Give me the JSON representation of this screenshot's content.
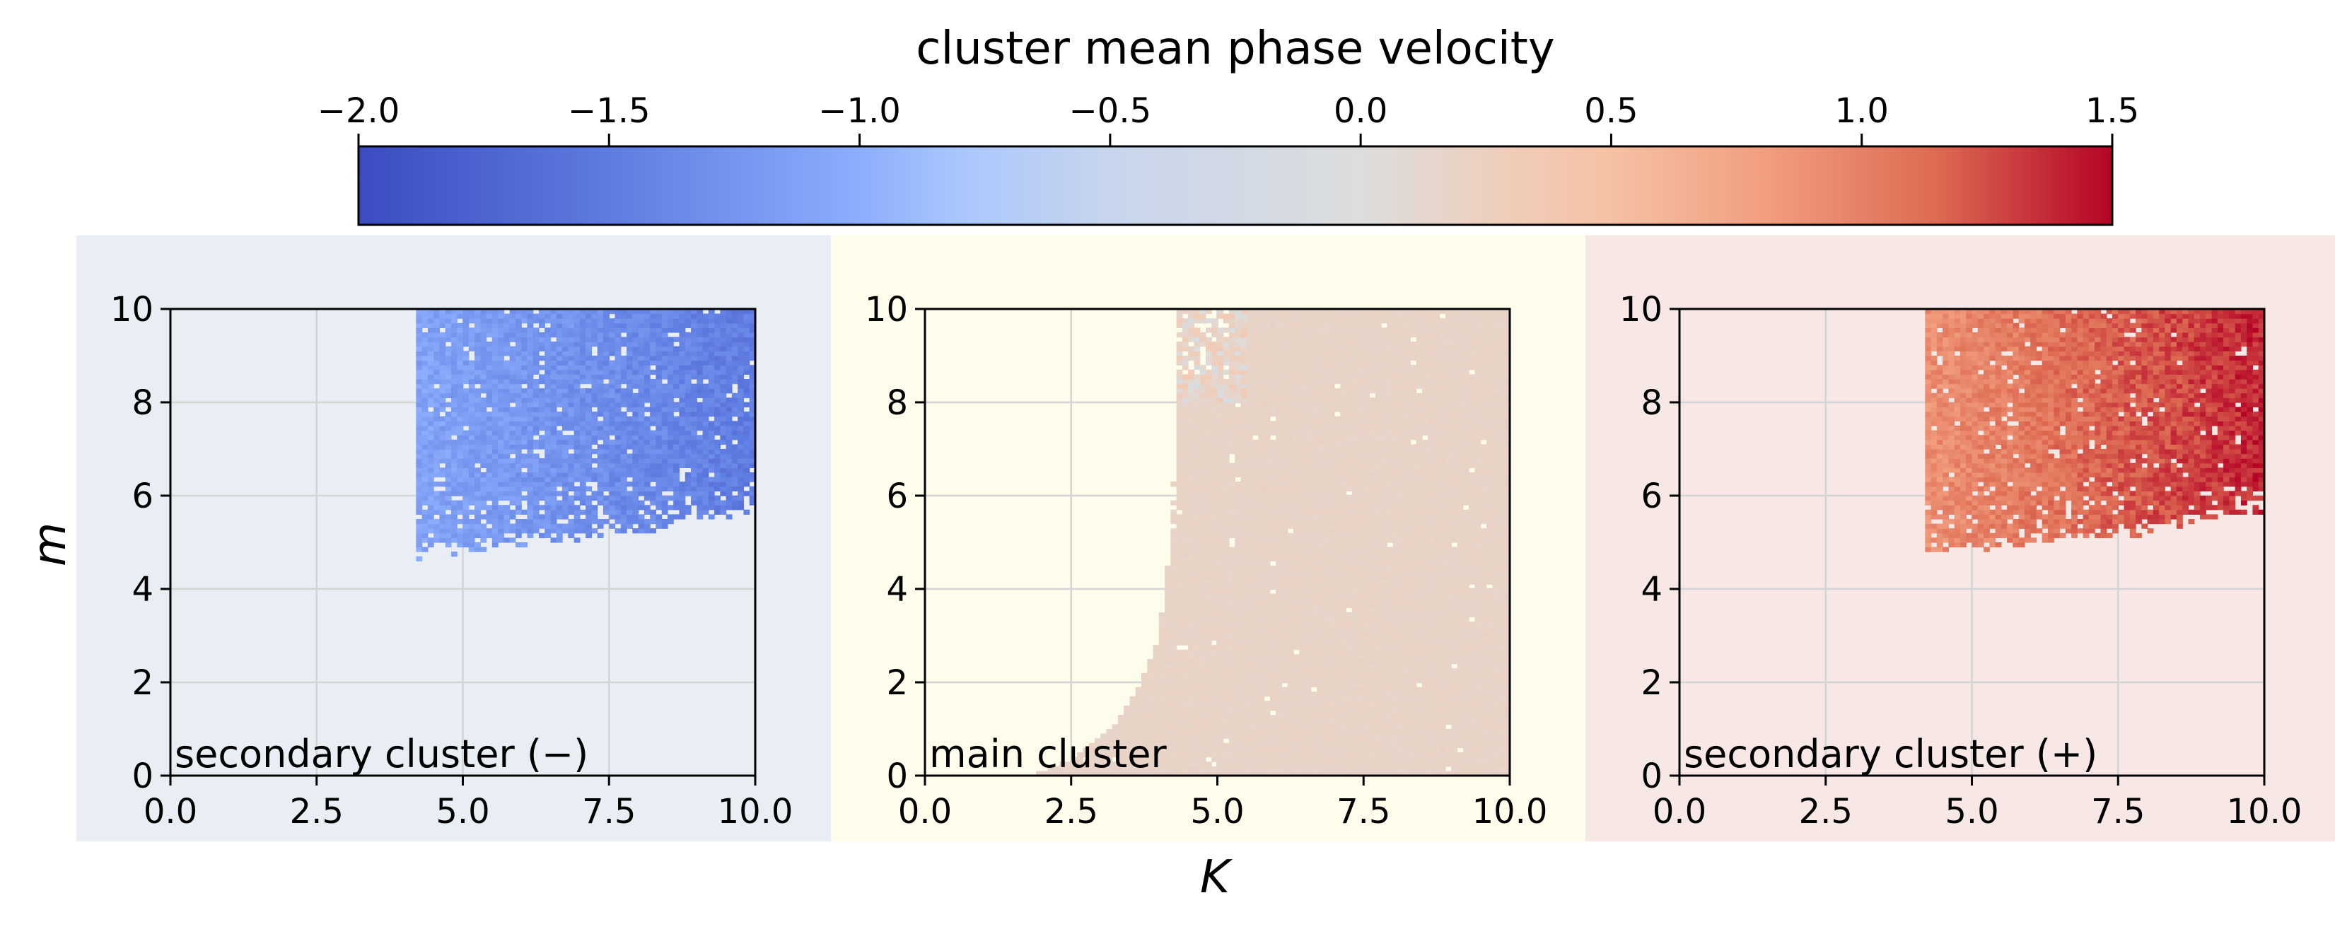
{
  "chart_data": {
    "type": "heatmap",
    "title": "cluster mean phase velocity",
    "xlabel": "K",
    "ylabel": "m",
    "colorbar": {
      "label": "cluster mean phase velocity",
      "range": [
        -2.0,
        1.5
      ],
      "ticks": [
        -2.0,
        -1.5,
        -1.0,
        -0.5,
        0.0,
        0.5,
        1.0,
        1.5
      ],
      "tick_labels": [
        "−2.0",
        "−1.5",
        "−1.0",
        "−0.5",
        "0.0",
        "0.5",
        "1.0",
        "1.5"
      ],
      "colormap": "coolwarm",
      "placement": "top"
    },
    "x_ticks": [
      0.0,
      2.5,
      5.0,
      7.5,
      10.0
    ],
    "x_tick_labels": [
      "0.0",
      "2.5",
      "5.0",
      "7.5",
      "10.0"
    ],
    "y_ticks": [
      0,
      2,
      4,
      6,
      8,
      10
    ],
    "y_tick_labels": [
      "0",
      "2",
      "4",
      "6",
      "8",
      "10"
    ],
    "xlim": [
      0,
      10
    ],
    "ylim": [
      0,
      10
    ],
    "grid": true,
    "panels": [
      {
        "label": "secondary cluster (−)",
        "background": "#e9eef5",
        "region": {
          "boundary": [
            [
              4.2,
              4.8
            ],
            [
              5.0,
              4.9
            ],
            [
              6.5,
              5.1
            ],
            [
              8.0,
              5.3
            ],
            [
              9.0,
              5.5
            ],
            [
              10.0,
              5.8
            ]
          ],
          "k_min": 4.2,
          "m_max": 10
        },
        "value_range": [
          -1.1,
          -1.5
        ]
      },
      {
        "label": "main cluster",
        "background": "#fefdec",
        "region": {
          "boundary": [
            [
              1.8,
              0.0
            ],
            [
              2.6,
              0.4
            ],
            [
              3.2,
              1.0
            ],
            [
              3.7,
              2.0
            ],
            [
              4.0,
              3.0
            ],
            [
              4.1,
              4.0
            ],
            [
              4.2,
              5.0
            ],
            [
              4.3,
              6.5
            ],
            [
              4.3,
              10.0
            ]
          ],
          "k_min": 1.8,
          "m_max": 10
        },
        "value_range": [
          0.1,
          0.35
        ]
      },
      {
        "label": "secondary cluster (+)",
        "background": "#f7e8e6",
        "region": {
          "boundary": [
            [
              4.2,
              4.8
            ],
            [
              5.0,
              4.9
            ],
            [
              6.5,
              5.1
            ],
            [
              8.0,
              5.3
            ],
            [
              9.0,
              5.5
            ],
            [
              10.0,
              5.8
            ]
          ],
          "k_min": 4.2,
          "m_max": 10
        },
        "value_range": [
          0.9,
          1.4
        ]
      }
    ]
  }
}
